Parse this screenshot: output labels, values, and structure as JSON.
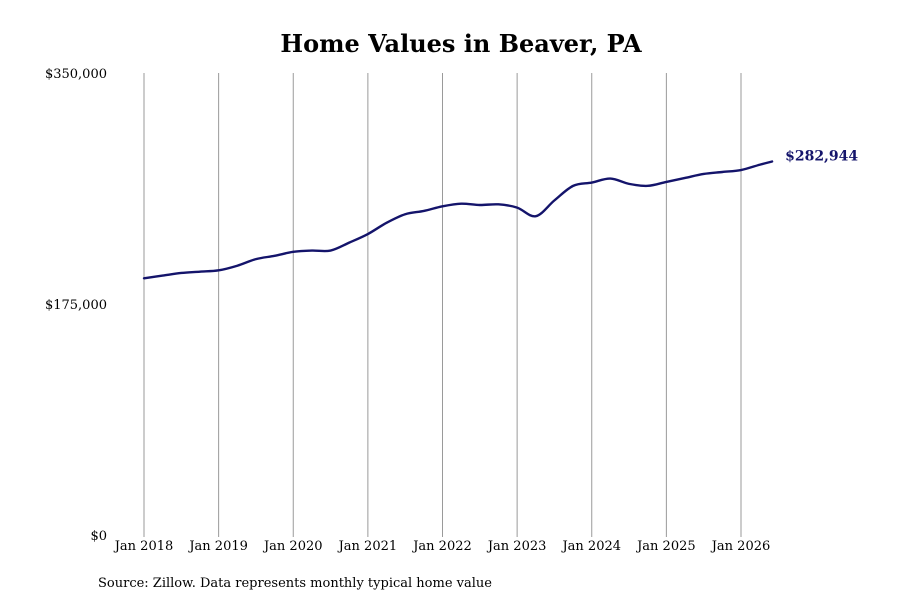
{
  "chart_data": {
    "type": "line",
    "title": "Home Values in Beaver, PA",
    "xlabel": "",
    "ylabel": "",
    "ylim": [
      0,
      350000
    ],
    "y_ticks": [
      {
        "value": 0,
        "label": "$0"
      },
      {
        "value": 175000,
        "label": "$175,000"
      },
      {
        "value": 350000,
        "label": "$350,000"
      }
    ],
    "x_ticks": [
      {
        "year": 2018,
        "label": "Jan 2018"
      },
      {
        "year": 2019,
        "label": "Jan 2019"
      },
      {
        "year": 2020,
        "label": "Jan 2020"
      },
      {
        "year": 2021,
        "label": "Jan 2021"
      },
      {
        "year": 2022,
        "label": "Jan 2022"
      },
      {
        "year": 2023,
        "label": "Jan 2023"
      },
      {
        "year": 2024,
        "label": "Jan 2024"
      },
      {
        "year": 2025,
        "label": "Jan 2025"
      },
      {
        "year": 2026,
        "label": "Jan 2026"
      }
    ],
    "vertical_gridlines": true,
    "line_color": "#14146b",
    "gridline_color": "#9a9a9a",
    "series": [
      {
        "points": [
          {
            "date": "2018-01",
            "value": 194500
          },
          {
            "date": "2018-04",
            "value": 196500
          },
          {
            "date": "2018-07",
            "value": 198500
          },
          {
            "date": "2018-10",
            "value": 199500
          },
          {
            "date": "2019-01",
            "value": 200500
          },
          {
            "date": "2019-04",
            "value": 204000
          },
          {
            "date": "2019-07",
            "value": 209000
          },
          {
            "date": "2019-10",
            "value": 211500
          },
          {
            "date": "2020-01",
            "value": 214500
          },
          {
            "date": "2020-04",
            "value": 215500
          },
          {
            "date": "2020-07",
            "value": 215500
          },
          {
            "date": "2020-10",
            "value": 221500
          },
          {
            "date": "2021-01",
            "value": 228000
          },
          {
            "date": "2021-04",
            "value": 236500
          },
          {
            "date": "2021-07",
            "value": 243000
          },
          {
            "date": "2021-10",
            "value": 245500
          },
          {
            "date": "2022-01",
            "value": 249000
          },
          {
            "date": "2022-04",
            "value": 251000
          },
          {
            "date": "2022-07",
            "value": 250000
          },
          {
            "date": "2022-10",
            "value": 250500
          },
          {
            "date": "2023-01",
            "value": 248000
          },
          {
            "date": "2023-04",
            "value": 241500
          },
          {
            "date": "2023-07",
            "value": 253500
          },
          {
            "date": "2023-10",
            "value": 264500
          },
          {
            "date": "2024-01",
            "value": 267000
          },
          {
            "date": "2024-04",
            "value": 270000
          },
          {
            "date": "2024-07",
            "value": 266000
          },
          {
            "date": "2024-10",
            "value": 264500
          },
          {
            "date": "2025-01",
            "value": 267500
          },
          {
            "date": "2025-04",
            "value": 270500
          },
          {
            "date": "2025-07",
            "value": 273500
          },
          {
            "date": "2025-10",
            "value": 275000
          },
          {
            "date": "2026-01",
            "value": 276500
          },
          {
            "date": "2026-04",
            "value": 280500
          },
          {
            "date": "2026-06",
            "value": 282944
          }
        ]
      }
    ],
    "end_label": "$282,944"
  },
  "source_note": "Source: Zillow. Data represents monthly typical home value"
}
